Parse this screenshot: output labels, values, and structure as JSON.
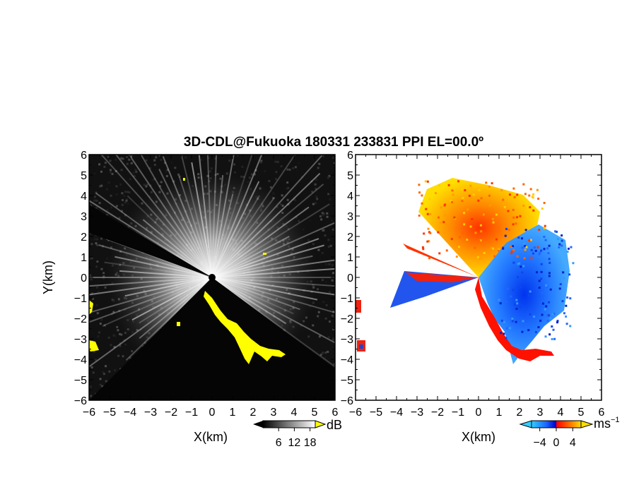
{
  "chart_data": {
    "title": "3D-CDL@Fukuoka 180331 233831 PPI EL=00.0º",
    "panels": [
      {
        "id": "reflectivity",
        "type": "heatmap",
        "xlabel": "X(km)",
        "ylabel": "Y(km)",
        "xlim": [
          -6,
          6
        ],
        "ylim": [
          -6,
          6
        ],
        "xticks": [
          "−6",
          "−5",
          "−4",
          "−3",
          "−2",
          "−1",
          "0",
          "1",
          "2",
          "3",
          "4",
          "5",
          "6"
        ],
        "yticks": [
          "6",
          "5",
          "4",
          "3",
          "2",
          "1",
          "0",
          "−1",
          "−2",
          "−3",
          "−4",
          "−5",
          "−6"
        ],
        "colorbar": {
          "unit": "dB",
          "tick_labels": [
            "6",
            "12",
            "18"
          ],
          "tick_values": [
            6,
            12,
            18
          ],
          "range": [
            0,
            20
          ],
          "colormap": [
            "#000000",
            "#ffffff"
          ],
          "over_color": "#ffff00"
        }
      },
      {
        "id": "velocity",
        "type": "heatmap",
        "xlabel": "X(km)",
        "xlim": [
          -6,
          6
        ],
        "ylim": [
          -6,
          6
        ],
        "xticks": [
          "−6",
          "−5",
          "−4",
          "−3",
          "−2",
          "−1",
          "0",
          "1",
          "2",
          "3",
          "4",
          "5",
          "6"
        ],
        "yticks": [
          "6",
          "5",
          "4",
          "3",
          "2",
          "1",
          "0",
          "−1",
          "−2",
          "−3",
          "−4",
          "−5",
          "−6"
        ],
        "colorbar": {
          "unit": "ms",
          "unit_superscript": "−1",
          "tick_labels": [
            "−4",
            "0",
            "4"
          ],
          "tick_values": [
            -4,
            0,
            4
          ],
          "range": [
            -6,
            6
          ],
          "colormap": [
            "#33ccff",
            "#1a66ff",
            "#0000cc",
            "#ff0000",
            "#ff6600",
            "#ffdd00"
          ]
        }
      }
    ]
  }
}
